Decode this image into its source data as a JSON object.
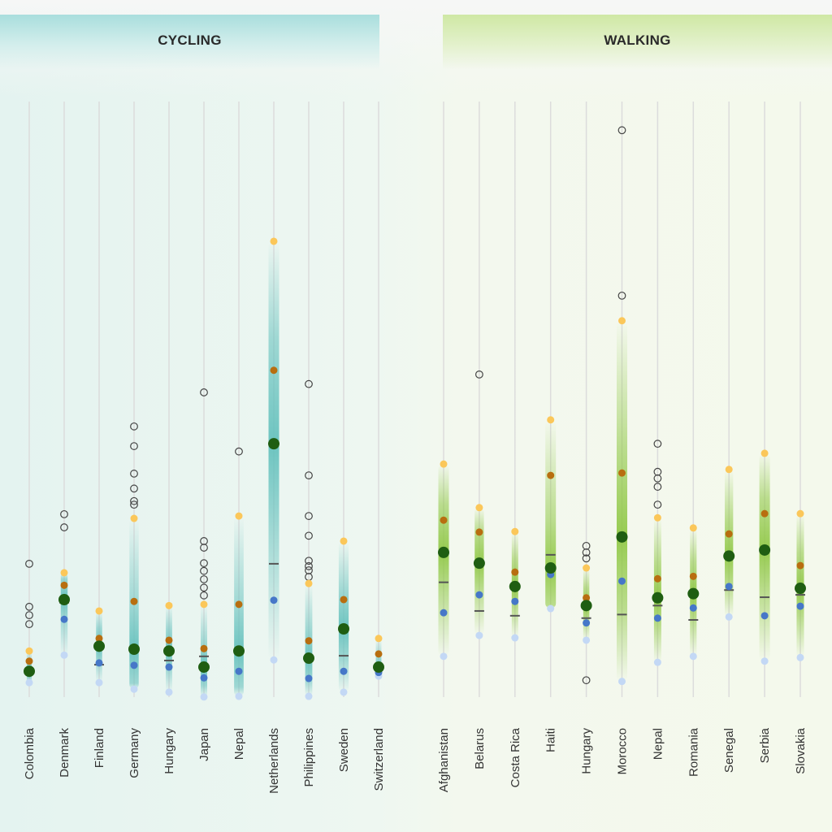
{
  "panels": [
    {
      "title": "CYCLING"
    },
    {
      "title": "WALKING"
    }
  ],
  "colors": {
    "low": "#c3d8f5",
    "q1": "#4677c8",
    "median": "#1f5e12",
    "q3": "#b86e10",
    "high": "#fbc75a",
    "mean": "#555555",
    "outlier": "#444444",
    "cycling_band": "#5fbfbb",
    "walking_band": "#8cc63f"
  },
  "chart_data": {
    "type": "scatter",
    "note_axis": "",
    "series_keys": [
      "low",
      "q1",
      "median",
      "q3",
      "high",
      "mean",
      "outliers"
    ],
    "groups": [
      {
        "panel": "CYCLING",
        "categories": [
          {
            "name": "Colombia",
            "low": 2.7,
            "q1": 4.4,
            "median": 4.6,
            "q3": 6.3,
            "high": 8.0,
            "mean": null,
            "outliers": [
              12.5,
              14.0,
              15.4,
              22.6
            ]
          },
          {
            "name": "Denmark",
            "low": 7.3,
            "q1": 13.3,
            "median": 16.6,
            "q3": 19.0,
            "high": 21.1,
            "mean": 16.1,
            "outliers": [
              28.7,
              30.9
            ]
          },
          {
            "name": "Finland",
            "low": 2.7,
            "q1": 6.0,
            "median": 8.8,
            "q3": 10.1,
            "high": 14.7,
            "mean": 5.7,
            "outliers": []
          },
          {
            "name": "Germany",
            "low": 1.6,
            "q1": 5.6,
            "median": 8.3,
            "q3": 16.3,
            "high": 30.2,
            "mean": null,
            "outliers": [
              32.5,
              33.1,
              35.2,
              37.7,
              42.3,
              45.6
            ]
          },
          {
            "name": "Hungary",
            "low": 1.1,
            "q1": 5.3,
            "median": 8.0,
            "q3": 9.8,
            "high": 15.6,
            "mean": 6.4,
            "outliers": []
          },
          {
            "name": "Japan",
            "low": 0.3,
            "q1": 3.5,
            "median": 5.3,
            "q3": 8.4,
            "high": 15.8,
            "mean": 7.1,
            "outliers": [
              17.3,
              18.6,
              20.0,
              21.4,
              22.7,
              25.3,
              26.4,
              51.3
            ]
          },
          {
            "name": "Nepal",
            "low": 0.4,
            "q1": 4.6,
            "median": 8.0,
            "q3": 15.8,
            "high": 30.6,
            "mean": null,
            "outliers": [
              41.4
            ]
          },
          {
            "name": "Netherlands",
            "low": 6.5,
            "q1": 16.5,
            "median": 42.7,
            "q3": 55.0,
            "high": 76.6,
            "mean": 22.6,
            "outliers": []
          },
          {
            "name": "Philippines",
            "low": 0.4,
            "q1": 3.4,
            "median": 6.8,
            "q3": 9.7,
            "high": 19.3,
            "mean": null,
            "outliers": [
              20.4,
              21.5,
              22.2,
              23.1,
              27.3,
              30.6,
              37.4,
              52.7
            ]
          },
          {
            "name": "Sweden",
            "low": 1.1,
            "q1": 4.6,
            "median": 11.7,
            "q3": 16.6,
            "high": 26.4,
            "mean": 7.2,
            "outliers": []
          },
          {
            "name": "Switzerland",
            "low": 3.8,
            "q1": 4.4,
            "median": 5.3,
            "q3": 7.5,
            "high": 10.1,
            "mean": null,
            "outliers": []
          }
        ]
      },
      {
        "panel": "WALKING",
        "categories": [
          {
            "name": "Afghanistan",
            "low": 7.1,
            "q1": 14.4,
            "median": 24.5,
            "q3": 29.9,
            "high": 39.3,
            "mean": 19.5,
            "outliers": []
          },
          {
            "name": "Belarus",
            "low": 10.6,
            "q1": 17.4,
            "median": 22.7,
            "q3": 27.9,
            "high": 32.0,
            "mean": 14.7,
            "outliers": [
              54.3
            ]
          },
          {
            "name": "Costa Rica",
            "low": 10.2,
            "q1": 16.3,
            "median": 18.8,
            "q3": 21.2,
            "high": 28.0,
            "mean": 13.9,
            "outliers": []
          },
          {
            "name": "Haiti",
            "low": 15.1,
            "q1": 20.8,
            "median": 21.9,
            "q3": 37.4,
            "high": 46.7,
            "mean": 24.1,
            "outliers": []
          },
          {
            "name": "Hungary",
            "low": 9.8,
            "q1": 12.7,
            "median": 15.6,
            "q3": 16.9,
            "high": 21.9,
            "mean": 13.5,
            "outliers": [
              3.1,
              23.5,
              24.5,
              25.6
            ]
          },
          {
            "name": "Morocco",
            "low": 2.9,
            "q1": 19.7,
            "median": 27.1,
            "q3": 37.8,
            "high": 63.3,
            "mean": 14.1,
            "outliers": [
              67.5,
              95.2
            ]
          },
          {
            "name": "Nepal",
            "low": 6.1,
            "q1": 13.5,
            "median": 16.9,
            "q3": 20.1,
            "high": 30.3,
            "mean": 15.6,
            "outliers": [
              32.5,
              35.5,
              36.9,
              38.0,
              42.7
            ]
          },
          {
            "name": "Romania",
            "low": 7.1,
            "q1": 15.2,
            "median": 17.6,
            "q3": 20.5,
            "high": 28.6,
            "mean": 13.2,
            "outliers": []
          },
          {
            "name": "Senegal",
            "low": 13.7,
            "q1": 18.8,
            "median": 23.9,
            "q3": 27.6,
            "high": 38.4,
            "mean": 18.2,
            "outliers": []
          },
          {
            "name": "Serbia",
            "low": 6.3,
            "q1": 13.9,
            "median": 24.9,
            "q3": 31.0,
            "high": 41.1,
            "mean": 17.0,
            "outliers": []
          },
          {
            "name": "Slovakia",
            "low": 6.9,
            "q1": 15.5,
            "median": 18.5,
            "q3": 22.3,
            "high": 31.0,
            "mean": 17.4,
            "outliers": []
          }
        ]
      }
    ],
    "ylim": [
      0,
      100
    ],
    "grid": "vertical",
    "legend": "none"
  }
}
